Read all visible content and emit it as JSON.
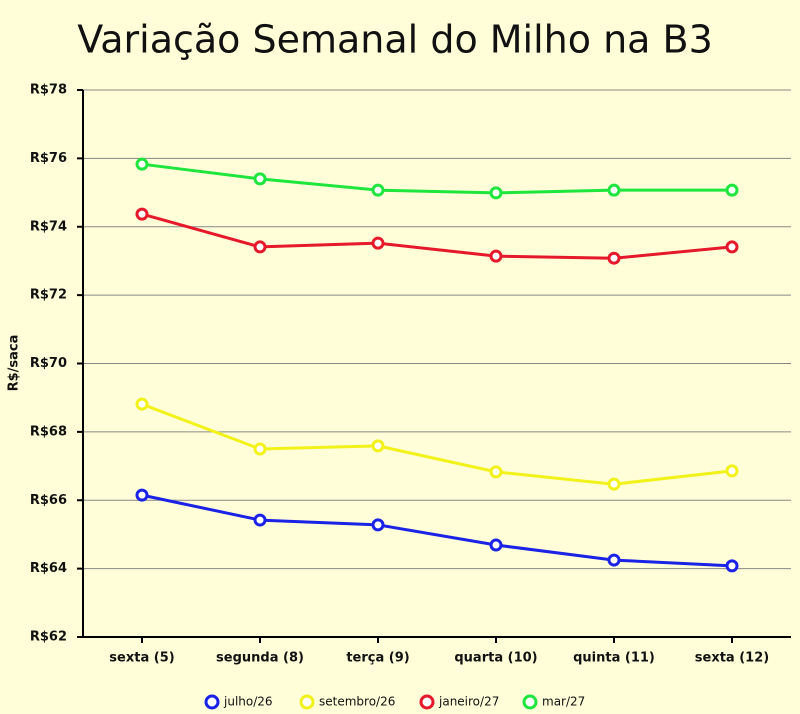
{
  "chart_data": {
    "type": "line",
    "title": "Variação Semanal do Milho na B3",
    "ylabel": "R$/saca",
    "categories": [
      "sexta (5)",
      "segunda (8)",
      "terça (9)",
      "quarta (10)",
      "quinta (11)",
      "sexta (12)"
    ],
    "series": [
      {
        "name": "julho/26",
        "color": "#1a22e6",
        "values": [
          66.15,
          65.42,
          65.28,
          64.69,
          64.25,
          64.08
        ]
      },
      {
        "name": "setembro/26",
        "color": "#f2f21a",
        "values": [
          68.81,
          67.5,
          67.59,
          66.83,
          66.47,
          66.86
        ]
      },
      {
        "name": "janeiro/27",
        "color": "#e6192b",
        "values": [
          74.37,
          73.41,
          73.52,
          73.14,
          73.08,
          73.41
        ]
      },
      {
        "name": "mar/27",
        "color": "#1ee63c",
        "values": [
          75.83,
          75.4,
          75.07,
          74.99,
          75.07,
          75.07
        ]
      }
    ],
    "ylim": [
      62,
      78
    ],
    "yticks": [
      {
        "value": 62,
        "label": "R$62"
      },
      {
        "value": 64,
        "label": "R$64"
      },
      {
        "value": 66,
        "label": "R$66"
      },
      {
        "value": 68,
        "label": "R$68"
      },
      {
        "value": 70,
        "label": "R$70"
      },
      {
        "value": 72,
        "label": "R$72"
      },
      {
        "value": 74,
        "label": "R$74"
      },
      {
        "value": 76,
        "label": "R$76"
      },
      {
        "value": 78,
        "label": "R$78"
      }
    ],
    "grid": true
  }
}
